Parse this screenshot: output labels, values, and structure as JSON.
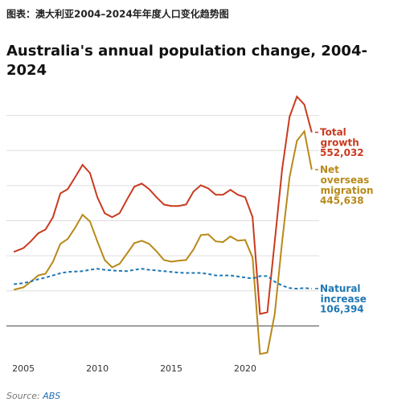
{
  "header": "图表：澳大利亚2004–2024年年度人口变化趋势图",
  "chart_data": {
    "type": "line",
    "title": "Australia's annual population change, 2004-2024",
    "x": [
      2004.35,
      2005,
      2005.5,
      2006,
      2006.5,
      2007,
      2007.5,
      2008,
      2008.5,
      2009,
      2009.5,
      2010,
      2010.5,
      2011,
      2011.5,
      2012,
      2012.5,
      2013,
      2013.5,
      2014,
      2014.5,
      2015,
      2015.5,
      2016,
      2016.5,
      2017,
      2017.5,
      2018,
      2018.5,
      2019,
      2019.5,
      2020,
      2020.5,
      2021,
      2021.5,
      2022,
      2022.5,
      2023,
      2023.5,
      2024,
      2024.5
    ],
    "series": [
      {
        "name": "Total growth",
        "color": "#c93a1f",
        "dashed": false,
        "values": [
          211000,
          222000,
          241000,
          264000,
          275000,
          310000,
          378000,
          390000,
          424000,
          459000,
          436000,
          367000,
          321000,
          310000,
          321000,
          360000,
          397000,
          406000,
          390000,
          367000,
          346000,
          342000,
          342000,
          346000,
          383000,
          401000,
          392000,
          374000,
          374000,
          388000,
          374000,
          367000,
          310000,
          34000,
          39000,
          241000,
          447000,
          596000,
          654000,
          631000,
          552032
        ],
        "value_labels": [
          "552,032"
        ]
      },
      {
        "name": "Net overseas migration",
        "color": "#b8891a",
        "dashed": false,
        "values": [
          103000,
          110000,
          126000,
          144000,
          149000,
          183000,
          234000,
          248000,
          280000,
          317000,
          298000,
          241000,
          188000,
          167000,
          177000,
          206000,
          236000,
          243000,
          234000,
          213000,
          188000,
          183000,
          186000,
          188000,
          218000,
          259000,
          261000,
          241000,
          239000,
          255000,
          243000,
          245000,
          195000,
          -80000,
          -76000,
          34000,
          241000,
          424000,
          528000,
          555000,
          445638
        ],
        "value_labels": [
          "445,638"
        ]
      },
      {
        "name": "Natural increase",
        "color": "#1f77b4",
        "dashed": true,
        "values": [
          119000,
          122000,
          127000,
          133000,
          138000,
          144000,
          150000,
          154000,
          155000,
          156000,
          160000,
          163000,
          160000,
          158000,
          157000,
          156000,
          160000,
          163000,
          160000,
          158000,
          156000,
          154000,
          152000,
          151000,
          151000,
          151000,
          148000,
          144000,
          144000,
          144000,
          141000,
          138000,
          135000,
          142000,
          142000,
          126000,
          115000,
          108000,
          106000,
          108000,
          106394
        ],
        "value_labels": [
          "106,394"
        ]
      }
    ],
    "xlim": [
      2003.85,
      2025
    ],
    "xticks": [
      2005,
      2010,
      2015,
      2020
    ],
    "ylim": [
      -100000,
      700000
    ],
    "yticks": [
      0,
      100000,
      200000,
      300000,
      400000,
      500000,
      600000
    ],
    "grid": true
  },
  "source_label": "Source:",
  "source": "ABS"
}
